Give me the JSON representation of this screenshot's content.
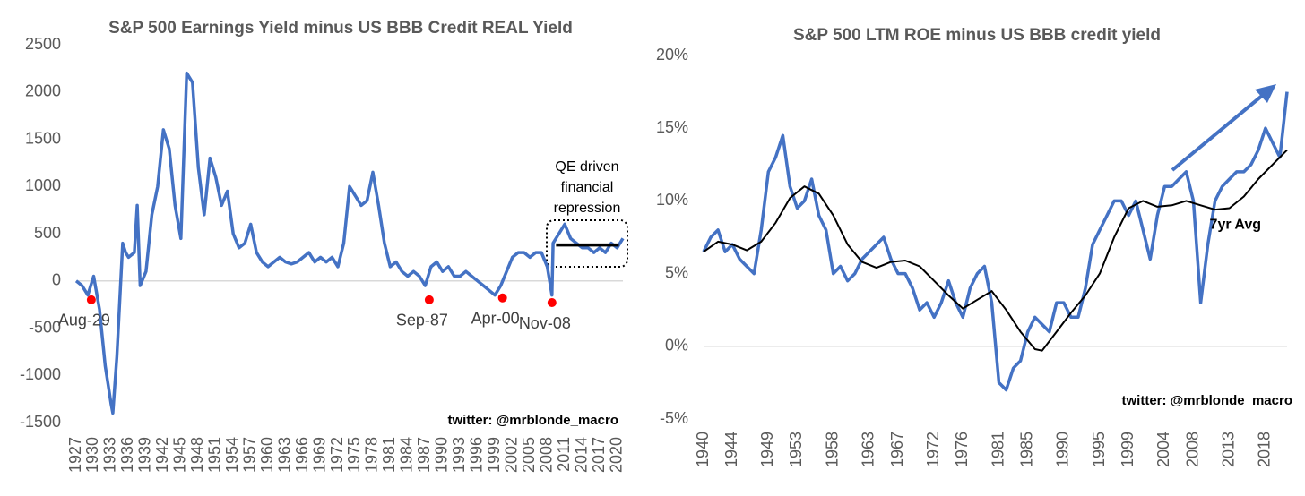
{
  "chart_data": [
    {
      "type": "line",
      "title": "S&P 500 Earnings Yield minus US BBB Credit REAL Yield",
      "xlim": [
        1927,
        2021
      ],
      "xticks": [
        1927,
        1930,
        1933,
        1936,
        1939,
        1942,
        1945,
        1948,
        1951,
        1954,
        1957,
        1960,
        1963,
        1966,
        1969,
        1972,
        1975,
        1978,
        1981,
        1984,
        1987,
        1990,
        1993,
        1996,
        1999,
        2002,
        2005,
        2008,
        2011,
        2014,
        2017,
        2020
      ],
      "ylim": [
        -1500,
        2500
      ],
      "yticks": [
        -1500,
        -1000,
        -500,
        0,
        500,
        1000,
        1500,
        2000,
        2500
      ],
      "grid": false,
      "series": [
        {
          "color": "#4472c4",
          "x": [
            1927,
            1928,
            1929,
            1930,
            1931,
            1932,
            1933,
            1933.3,
            1934,
            1935,
            1935.5,
            1936,
            1937,
            1937.5,
            1938,
            1939,
            1940,
            1941,
            1942,
            1943,
            1944,
            1945,
            1946,
            1947,
            1948,
            1949,
            1950,
            1951,
            1952,
            1953,
            1954,
            1955,
            1956,
            1957,
            1958,
            1959,
            1960,
            1961,
            1962,
            1963,
            1964,
            1965,
            1966,
            1967,
            1968,
            1969,
            1970,
            1971,
            1972,
            1973,
            1974,
            1975,
            1976,
            1977,
            1978,
            1979,
            1980,
            1981,
            1982,
            1983,
            1984,
            1985,
            1986,
            1987,
            1988,
            1989,
            1990,
            1991,
            1992,
            1993,
            1994,
            1995,
            1996,
            1997,
            1998,
            1999,
            2000,
            2001,
            2002,
            2003,
            2004,
            2005,
            2006,
            2007,
            2008,
            2008.8,
            2009,
            2010,
            2011,
            2012,
            2013,
            2014,
            2015,
            2016,
            2017,
            2018,
            2019,
            2020,
            2021
          ],
          "values": [
            0,
            -50,
            -150,
            50,
            -300,
            -900,
            -1300,
            -1400,
            -800,
            400,
            300,
            250,
            300,
            800,
            -50,
            100,
            700,
            1000,
            1600,
            1400,
            800,
            450,
            2200,
            2100,
            1200,
            700,
            1300,
            1100,
            800,
            950,
            500,
            350,
            400,
            600,
            300,
            200,
            150,
            200,
            250,
            200,
            180,
            200,
            250,
            300,
            200,
            250,
            200,
            250,
            150,
            400,
            1000,
            900,
            800,
            850,
            1150,
            800,
            400,
            150,
            200,
            100,
            50,
            100,
            50,
            -50,
            150,
            200,
            100,
            150,
            50,
            50,
            100,
            50,
            0,
            -50,
            -100,
            -150,
            -50,
            100,
            250,
            300,
            300,
            250,
            300,
            300,
            150,
            -150,
            400,
            500,
            600,
            450,
            400,
            350,
            350,
            300,
            350,
            300,
            400,
            350,
            450
          ]
        }
      ],
      "annotations": [
        {
          "text": "Aug-29",
          "x": 1929.6,
          "y": -200,
          "color": "#ff0000"
        },
        {
          "text": "Sep-87",
          "x": 1987.7,
          "y": -200,
          "color": "#ff0000"
        },
        {
          "text": "Apr-00",
          "x": 2000.3,
          "y": -180,
          "color": "#ff0000"
        },
        {
          "text": "Nov-08",
          "x": 2008.8,
          "y": -230,
          "color": "#ff0000"
        }
      ],
      "reference_line": {
        "x": [
          2009.5,
          2020.3
        ],
        "y": 380,
        "color": "#000000"
      },
      "note": [
        "QE driven",
        "financial",
        "repression"
      ],
      "credit": "twitter: @mrblonde_macro"
    },
    {
      "type": "line",
      "title": "S&P 500 LTM ROE minus US BBB credit yield",
      "xlim": [
        1940,
        2021
      ],
      "xticks": [
        1940,
        1944,
        1949,
        1953,
        1958,
        1963,
        1967,
        1972,
        1976,
        1981,
        1985,
        1990,
        1995,
        1999,
        2004,
        2008,
        2013,
        2018
      ],
      "ylim": [
        -5,
        20
      ],
      "yticks": [
        {
          "value": -5,
          "label": "-5%"
        },
        {
          "value": 0,
          "label": "0%"
        },
        {
          "value": 5,
          "label": "5%"
        },
        {
          "value": 10,
          "label": "10%"
        },
        {
          "value": 15,
          "label": "15%"
        },
        {
          "value": 20,
          "label": "20%"
        }
      ],
      "grid": false,
      "series": [
        {
          "color": "#4472c4",
          "x": [
            1940,
            1941,
            1942,
            1943,
            1944,
            1945,
            1946,
            1947,
            1948,
            1949,
            1950,
            1951,
            1952,
            1953,
            1954,
            1955,
            1956,
            1957,
            1958,
            1959,
            1960,
            1961,
            1962,
            1963,
            1964,
            1965,
            1966,
            1967,
            1968,
            1969,
            1970,
            1971,
            1972,
            1973,
            1974,
            1975,
            1976,
            1977,
            1978,
            1979,
            1980,
            1981,
            1982,
            1983,
            1984,
            1985,
            1986,
            1987,
            1988,
            1989,
            1990,
            1991,
            1992,
            1993,
            1994,
            1995,
            1996,
            1997,
            1998,
            1999,
            2000,
            2001,
            2002,
            2003,
            2004,
            2005,
            2006,
            2007,
            2008,
            2009,
            2010,
            2011,
            2012,
            2013,
            2014,
            2015,
            2016,
            2017,
            2018,
            2019,
            2020,
            2021
          ],
          "values": [
            6.5,
            7.5,
            8,
            6.5,
            7,
            6,
            5.5,
            5,
            8,
            12,
            13,
            14.5,
            11,
            9.5,
            10,
            11.5,
            9,
            8,
            5,
            5.5,
            4.5,
            5,
            6,
            6.5,
            7,
            7.5,
            6,
            5,
            5,
            4,
            2.5,
            3,
            2,
            3,
            4.5,
            3,
            2,
            4,
            5,
            5.5,
            3,
            -2.5,
            -3,
            -1.5,
            -1,
            1,
            2,
            1.5,
            1,
            3,
            3,
            2,
            2,
            4,
            7,
            8,
            9,
            10,
            10,
            9,
            10,
            8,
            6,
            9,
            11,
            11,
            11.5,
            12,
            10,
            3,
            7,
            10,
            11,
            11.5,
            12,
            12,
            12.5,
            13.5,
            15,
            14,
            13,
            17.5
          ]
        },
        {
          "name": "7yr Avg",
          "color": "#000000",
          "x": [
            1940,
            1942,
            1944,
            1946,
            1948,
            1950,
            1952,
            1954,
            1956,
            1958,
            1960,
            1962,
            1964,
            1966,
            1968,
            1970,
            1972,
            1974,
            1976,
            1978,
            1980,
            1982,
            1984,
            1986,
            1987,
            1989,
            1991,
            1993,
            1995,
            1997,
            1999,
            2001,
            2003,
            2005,
            2007,
            2009,
            2011,
            2013,
            2015,
            2017,
            2019,
            2021
          ],
          "values": [
            6.5,
            7.2,
            7,
            6.6,
            7.2,
            8.5,
            10.2,
            11,
            10.5,
            9,
            7,
            5.8,
            5.4,
            5.8,
            5.9,
            5.5,
            4.5,
            3.5,
            2.6,
            3.2,
            3.8,
            2.5,
            1,
            -0.2,
            -0.3,
            1,
            2.3,
            3.5,
            5,
            7.5,
            9.5,
            10,
            9.6,
            9.7,
            10,
            9.7,
            9.4,
            9.5,
            10.3,
            11.5,
            12.5,
            13.5
          ]
        }
      ],
      "credit": "twitter: @mrblonde_macro"
    }
  ]
}
